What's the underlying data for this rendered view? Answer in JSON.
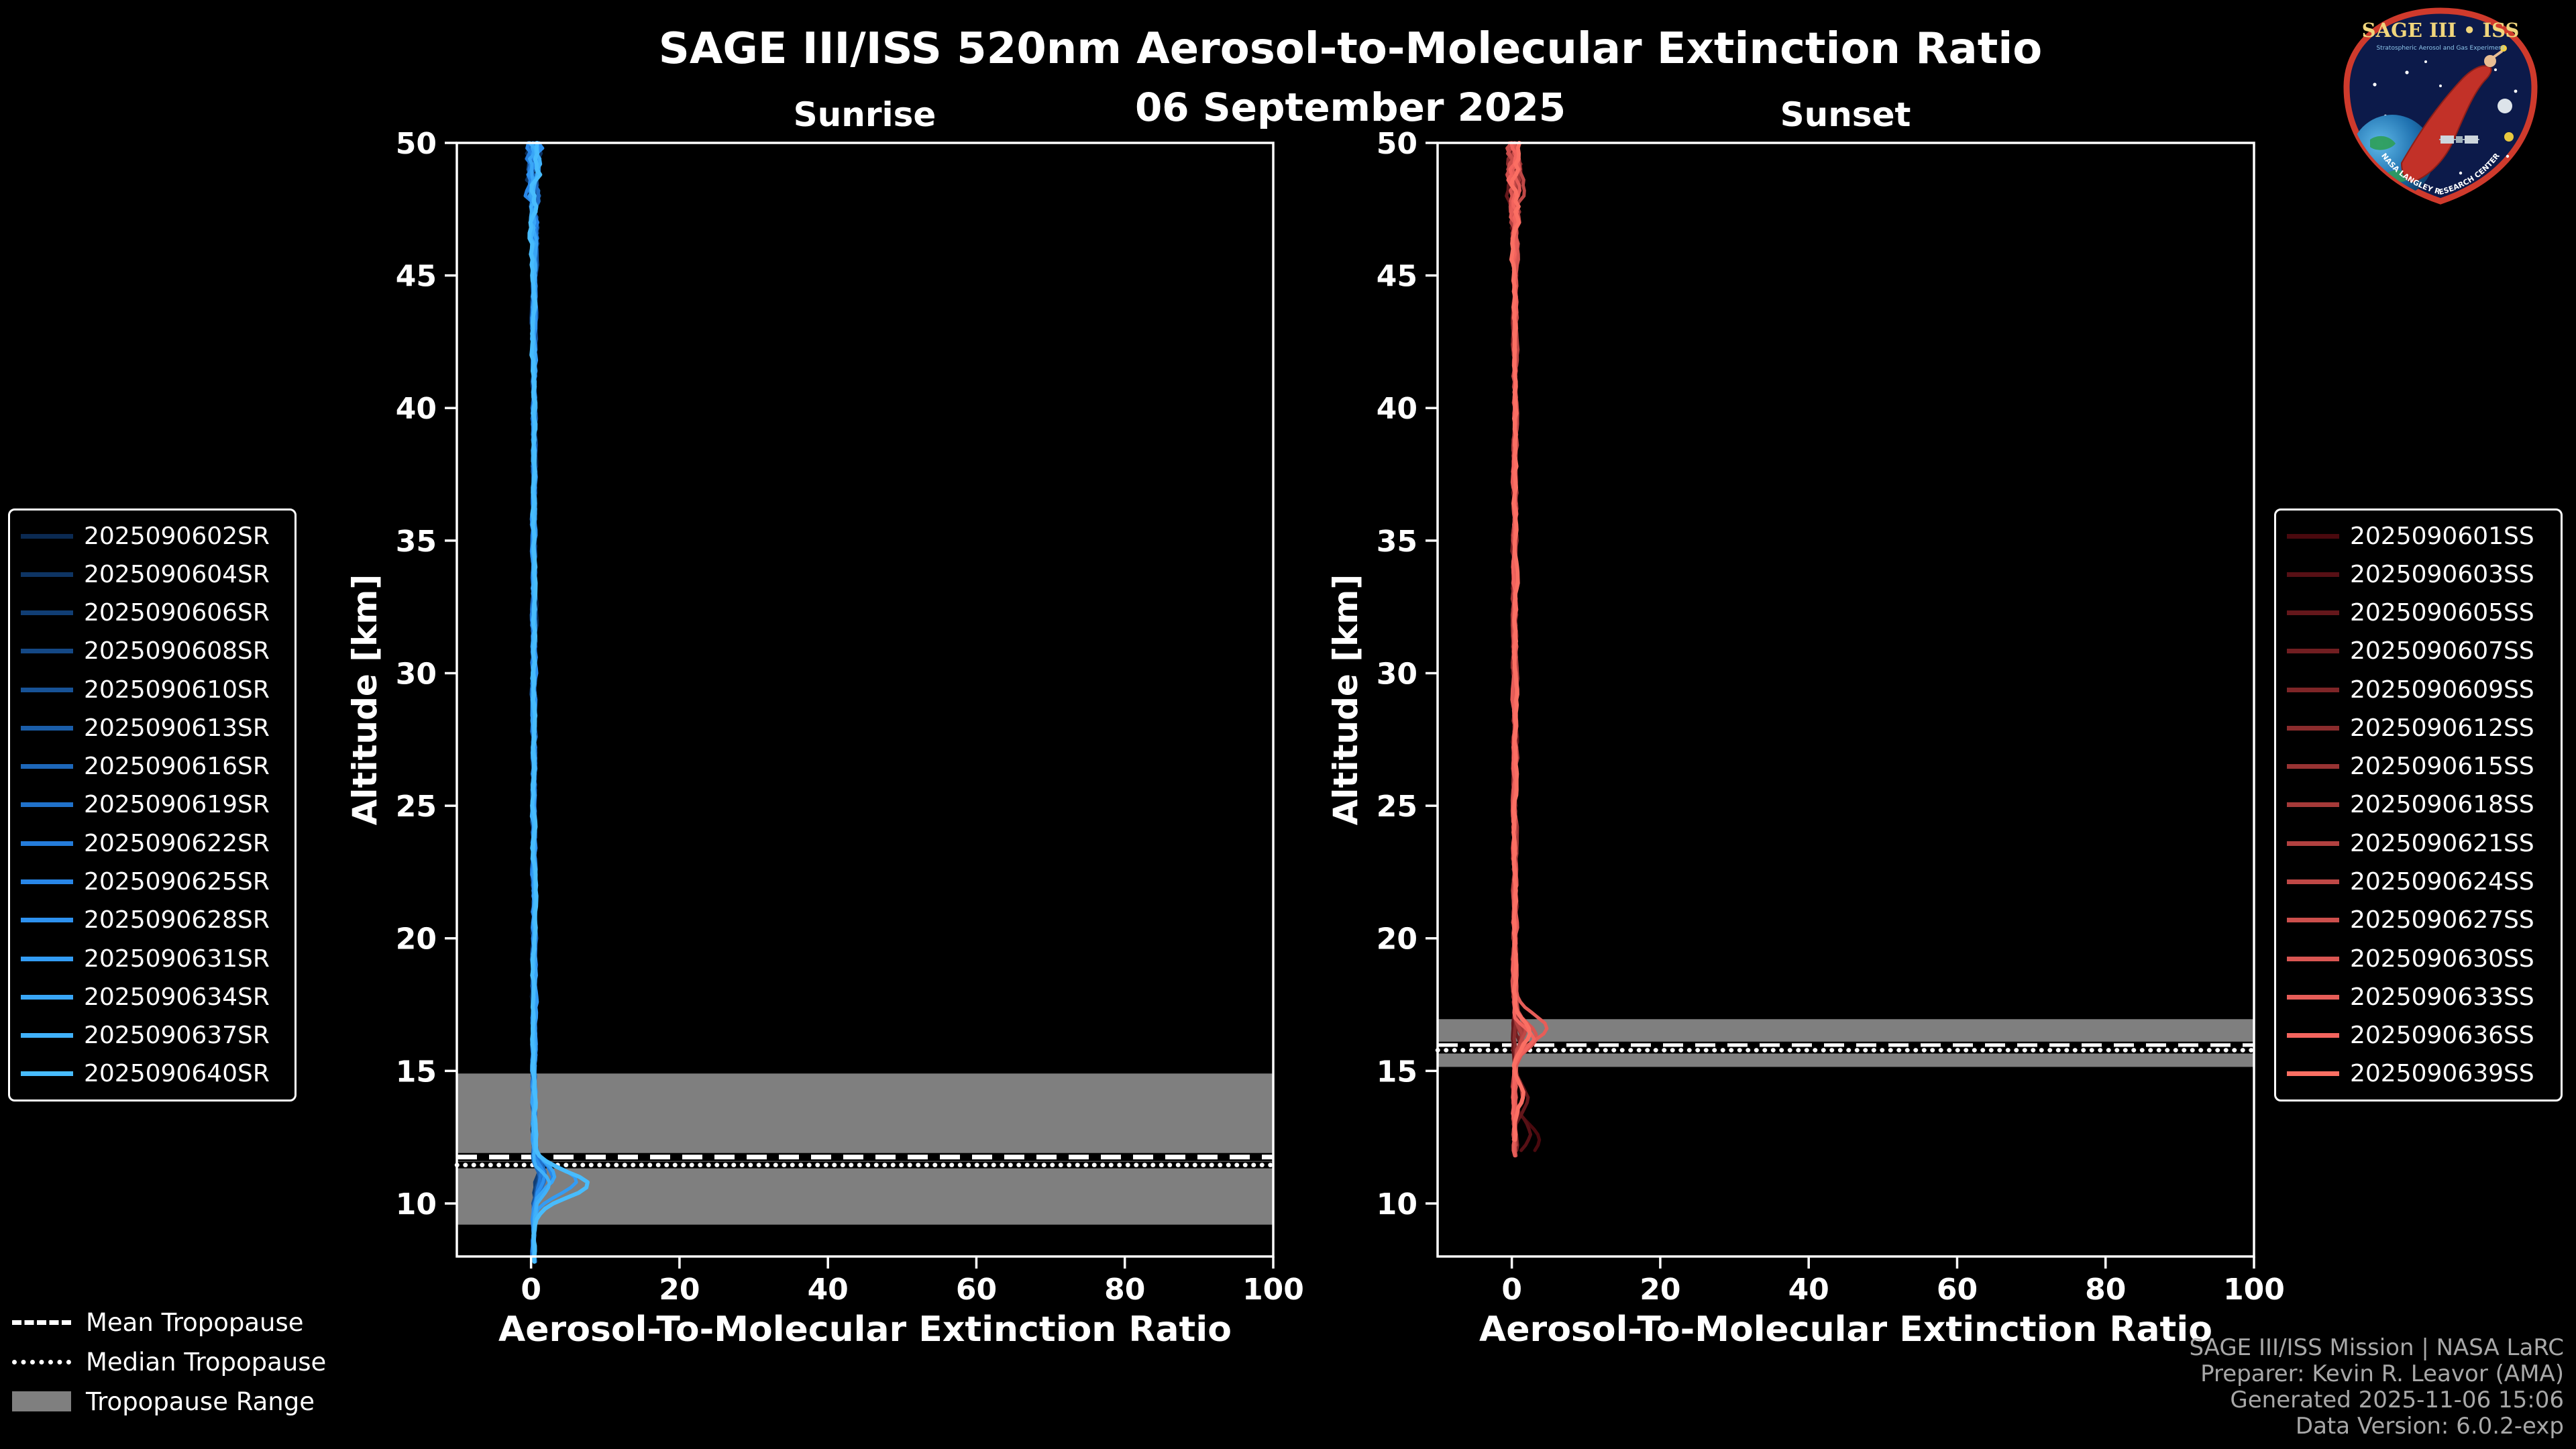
{
  "header": {
    "title": "SAGE III/ISS 520nm Aerosol-to-Molecular Extinction Ratio",
    "date": "06 September 2025"
  },
  "tropopause_legend": {
    "mean": "Mean Tropopause",
    "median": "Median Tropopause",
    "range": "Tropopause Range"
  },
  "footer": {
    "lines": [
      "SAGE III/ISS Mission | NASA LaRC",
      "Preparer: Kevin R. Leavor (AMA)",
      "Generated 2025-11-06 15:06",
      "Data Version: 6.0.2-exp"
    ]
  },
  "logo": {
    "title": "SAGE III • ISS",
    "subtitle": "Stratospheric Aerosol and Gas Experiment",
    "arc_text": "NASA LANGLEY RESEARCH CENTER"
  },
  "colors": {
    "background": "#000000",
    "frame": "#ffffff",
    "band": "#7f7f7f",
    "footer_text": "#a8a8a8",
    "sunrise_accent": "#48bcfd",
    "sunset_accent": "#fb6f63"
  },
  "chart_data": [
    {
      "type": "line",
      "title": "Sunrise",
      "xlabel": "Aerosol-To-Molecular Extinction Ratio",
      "ylabel": "Altitude [km]",
      "xlim": [
        -10,
        100
      ],
      "ylim": [
        8,
        50
      ],
      "xticks": [
        0,
        20,
        40,
        60,
        80,
        100
      ],
      "yticks": [
        10,
        15,
        20,
        25,
        30,
        35,
        40,
        45,
        50
      ],
      "grid": false,
      "legend_position": "outside-left",
      "baseline": 0.4,
      "data_alt_min": 8,
      "band_color": "#7f7f7f",
      "tropopause": {
        "mean": 11.75,
        "median": 11.45,
        "range": [
          9.2,
          14.9
        ]
      },
      "series": [
        {
          "name": "2025090602SR",
          "color": "#0b2a52",
          "bumps": [
            {
              "c": 11.2,
              "a": 0.7,
              "w": 0.45
            }
          ]
        },
        {
          "name": "2025090604SR",
          "color": "#0e3463",
          "bumps": [
            {
              "c": 11.0,
              "a": 0.9,
              "w": 0.5
            }
          ]
        },
        {
          "name": "2025090606SR",
          "color": "#113e74",
          "bumps": [
            {
              "c": 11.3,
              "a": 0.6,
              "w": 0.4
            }
          ]
        },
        {
          "name": "2025090608SR",
          "color": "#144885",
          "bumps": [
            {
              "c": 10.9,
              "a": 1.1,
              "w": 0.5
            }
          ]
        },
        {
          "name": "2025090610SR",
          "color": "#175296",
          "bumps": [
            {
              "c": 11.1,
              "a": 0.8,
              "w": 0.45
            }
          ]
        },
        {
          "name": "2025090613SR",
          "color": "#1a5da8",
          "bumps": [
            {
              "c": 11.2,
              "a": 1.3,
              "w": 0.5
            }
          ]
        },
        {
          "name": "2025090616SR",
          "color": "#1d67b9",
          "bumps": [
            {
              "c": 10.8,
              "a": 0.9,
              "w": 0.45
            }
          ]
        },
        {
          "name": "2025090619SR",
          "color": "#2071ca",
          "bumps": [
            {
              "c": 11.0,
              "a": 1.6,
              "w": 0.5
            }
          ]
        },
        {
          "name": "2025090622SR",
          "color": "#247cdb",
          "bumps": [
            {
              "c": 11.1,
              "a": 1.0,
              "w": 0.45
            }
          ]
        },
        {
          "name": "2025090625SR",
          "color": "#2886e7",
          "bumps": [
            {
              "c": 11.0,
              "a": 2.6,
              "w": 0.5
            }
          ]
        },
        {
          "name": "2025090628SR",
          "color": "#2d91ef",
          "bumps": [
            {
              "c": 10.9,
              "a": 1.4,
              "w": 0.45
            }
          ]
        },
        {
          "name": "2025090631SR",
          "color": "#339cf4",
          "bumps": [
            {
              "c": 10.85,
              "a": 5.5,
              "w": 0.5
            }
          ]
        },
        {
          "name": "2025090634SR",
          "color": "#39a6f7",
          "bumps": [
            {
              "c": 11.05,
              "a": 3.0,
              "w": 0.45
            }
          ]
        },
        {
          "name": "2025090637SR",
          "color": "#40b1fa",
          "bumps": [
            {
              "c": 10.75,
              "a": 2.0,
              "w": 0.4
            }
          ]
        },
        {
          "name": "2025090640SR",
          "color": "#48bcfd",
          "bumps": [
            {
              "c": 10.7,
              "a": 7.3,
              "w": 0.5
            }
          ]
        }
      ]
    },
    {
      "type": "line",
      "title": "Sunset",
      "xlabel": "Aerosol-To-Molecular Extinction Ratio",
      "ylabel": "Altitude [km]",
      "xlim": [
        -10,
        100
      ],
      "ylim": [
        8,
        50
      ],
      "xticks": [
        0,
        20,
        40,
        60,
        80,
        100
      ],
      "yticks": [
        10,
        15,
        20,
        25,
        30,
        35,
        40,
        45,
        50
      ],
      "grid": false,
      "legend_position": "outside-right",
      "baseline": 0.4,
      "data_alt_min": 12,
      "band_color": "#7f7f7f",
      "tropopause": {
        "mean": 15.95,
        "median": 15.78,
        "range": [
          15.15,
          16.95
        ]
      },
      "series": [
        {
          "name": "2025090601SS",
          "color": "#4a090e",
          "bumps": [
            {
              "c": 12.4,
              "a": 3.2,
              "w": 0.6
            }
          ]
        },
        {
          "name": "2025090603SS",
          "color": "#571015",
          "bumps": [
            {
              "c": 12.7,
              "a": 2.2,
              "w": 0.5
            }
          ]
        },
        {
          "name": "2025090605SS",
          "color": "#64171b",
          "bumps": [
            {
              "c": 13.9,
              "a": 1.6,
              "w": 0.5
            }
          ]
        },
        {
          "name": "2025090607SS",
          "color": "#711e21",
          "bumps": [
            {
              "c": 16.0,
              "a": 0.6,
              "w": 0.4
            }
          ]
        },
        {
          "name": "2025090609SS",
          "color": "#7e2527",
          "bumps": [
            {
              "c": 16.3,
              "a": 0.8,
              "w": 0.45
            }
          ]
        },
        {
          "name": "2025090612SS",
          "color": "#8b2c2d",
          "bumps": [
            {
              "c": 14.1,
              "a": 1.1,
              "w": 0.45
            }
          ]
        },
        {
          "name": "2025090615SS",
          "color": "#983333",
          "bumps": [
            {
              "c": 16.2,
              "a": 0.7,
              "w": 0.4
            }
          ]
        },
        {
          "name": "2025090618SS",
          "color": "#a53a39",
          "bumps": [
            {
              "c": 16.4,
              "a": 1.0,
              "w": 0.45
            }
          ]
        },
        {
          "name": "2025090621SS",
          "color": "#b24140",
          "bumps": [
            {
              "c": 16.1,
              "a": 0.9,
              "w": 0.4
            }
          ]
        },
        {
          "name": "2025090624SS",
          "color": "#bf4846",
          "bumps": [
            {
              "c": 16.5,
              "a": 1.4,
              "w": 0.45
            }
          ]
        },
        {
          "name": "2025090627SS",
          "color": "#cc4f4c",
          "bumps": [
            {
              "c": 16.5,
              "a": 2.0,
              "w": 0.4
            }
          ]
        },
        {
          "name": "2025090630SS",
          "color": "#d95652",
          "bumps": [
            {
              "c": 16.3,
              "a": 3.0,
              "w": 0.45
            }
          ]
        },
        {
          "name": "2025090633SS",
          "color": "#e65d58",
          "bumps": [
            {
              "c": 16.6,
              "a": 4.3,
              "w": 0.5
            }
          ]
        },
        {
          "name": "2025090636SS",
          "color": "#f3645e",
          "bumps": [
            {
              "c": 16.2,
              "a": 2.4,
              "w": 0.4
            }
          ]
        },
        {
          "name": "2025090639SS",
          "color": "#fb6f63",
          "bumps": [
            {
              "c": 16.4,
              "a": 2.2,
              "w": 0.45
            },
            {
              "c": 14.2,
              "a": 1.1,
              "w": 0.4
            }
          ]
        }
      ]
    }
  ]
}
